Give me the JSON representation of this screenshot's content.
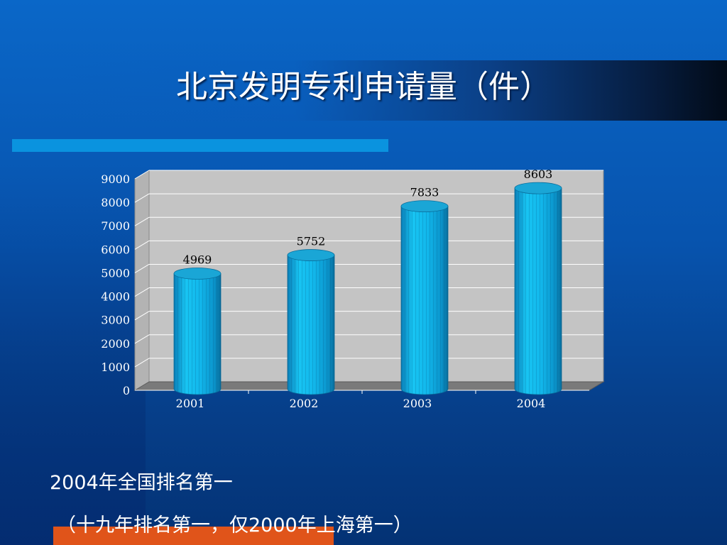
{
  "slide": {
    "title": "北京发明专利申请量（件）",
    "note_line1": "2004年全国排名第一",
    "note_line2": "（十九年排名第一，仅2000年上海第一）"
  },
  "colors": {
    "background": "#0753ad",
    "bar": "#12b8ec",
    "bar_top": "#1aa6d6",
    "plot_wall": "#c4c4c4",
    "floor": "#7a7a7a",
    "accent_bar": "#0a93df",
    "bottom_bar": "#e0541a"
  },
  "chart_data": {
    "type": "bar",
    "style": "3d-cylinder",
    "categories": [
      "2001",
      "2002",
      "2003",
      "2004"
    ],
    "values": [
      4969,
      5752,
      7833,
      8603
    ],
    "data_labels": [
      "4969",
      "5752",
      "7833",
      "8603"
    ],
    "yticks": [
      "0",
      "1000",
      "2000",
      "3000",
      "4000",
      "5000",
      "6000",
      "7000",
      "8000",
      "9000"
    ],
    "ylim": [
      0,
      9000
    ],
    "grid": true,
    "legend": "none"
  }
}
